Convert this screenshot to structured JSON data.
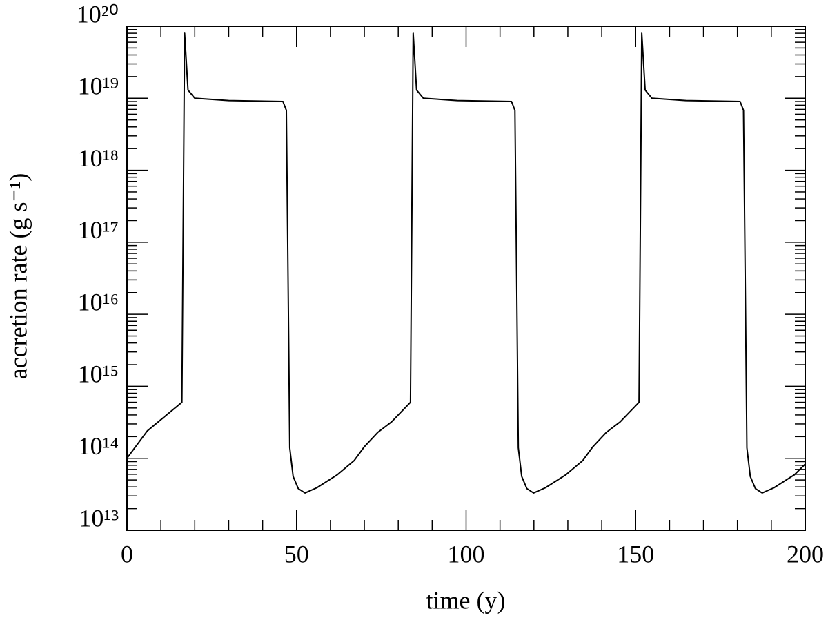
{
  "chart_data": {
    "type": "line",
    "x_label": "time (y)",
    "y_label": "accretion rate (g s⁻¹)",
    "x": [
      0,
      6,
      16.2,
      17,
      18,
      20,
      30,
      46,
      47,
      47.5,
      48,
      49,
      50.5,
      52.5,
      56,
      62,
      67,
      70,
      74,
      78,
      83.6,
      84.4,
      85.4,
      87.4,
      97.4,
      113.4,
      114.4,
      114.9,
      115.4,
      116.4,
      117.9,
      119.9,
      123.4,
      129.4,
      134.4,
      137.4,
      141.4,
      145.4,
      151.0,
      151.8,
      152.8,
      154.8,
      164.8,
      180.8,
      181.8,
      182.3,
      182.8,
      183.8,
      185.3,
      187.3,
      190.8,
      196.8,
      200
    ],
    "values": [
      100000000000000.0,
      240000000000000.0,
      600000000000000.0,
      8e+19,
      1.3e+19,
      1e+19,
      9.3e+18,
      9e+18,
      6.8e+18,
      3.4e+16,
      140000000000000.0,
      56000000000000.0,
      38000000000000.0,
      33000000000000.0,
      39000000000000.0,
      59000000000000.0,
      93000000000000.0,
      145000000000000.0,
      230000000000000.0,
      320000000000000.0,
      600000000000000.0,
      8e+19,
      1.3e+19,
      1e+19,
      9.3e+18,
      9e+18,
      6.8e+18,
      3.4e+16,
      140000000000000.0,
      56000000000000.0,
      38000000000000.0,
      33000000000000.0,
      39000000000000.0,
      59000000000000.0,
      93000000000000.0,
      145000000000000.0,
      230000000000000.0,
      320000000000000.0,
      600000000000000.0,
      8e+19,
      1.3e+19,
      1e+19,
      9.3e+18,
      9e+18,
      6.8e+18,
      3.4e+16,
      140000000000000.0,
      56000000000000.0,
      38000000000000.0,
      33000000000000.0,
      39000000000000.0,
      59000000000000.0,
      83000000000000.0
    ],
    "color": "#000000",
    "xlim": [
      0,
      200
    ],
    "xticks": [
      0,
      50,
      100,
      150,
      200
    ],
    "ylim": [
      10000000000000.0,
      1e+20
    ],
    "log_y": true,
    "minor_ticks": true,
    "yticks": [
      {
        "value": 10000000000000.0,
        "label": "10¹³"
      },
      {
        "value": 100000000000000.0,
        "label": "10¹⁴"
      },
      {
        "value": 1000000000000000.0,
        "label": "10¹⁵"
      },
      {
        "value": 1e+16,
        "label": "10¹⁶"
      },
      {
        "value": 1e+17,
        "label": "10¹⁷"
      },
      {
        "value": 1e+18,
        "label": "10¹⁸"
      },
      {
        "value": 1e+19,
        "label": "10¹⁹"
      },
      {
        "value": 1e+20,
        "label": "10²⁰"
      }
    ]
  }
}
